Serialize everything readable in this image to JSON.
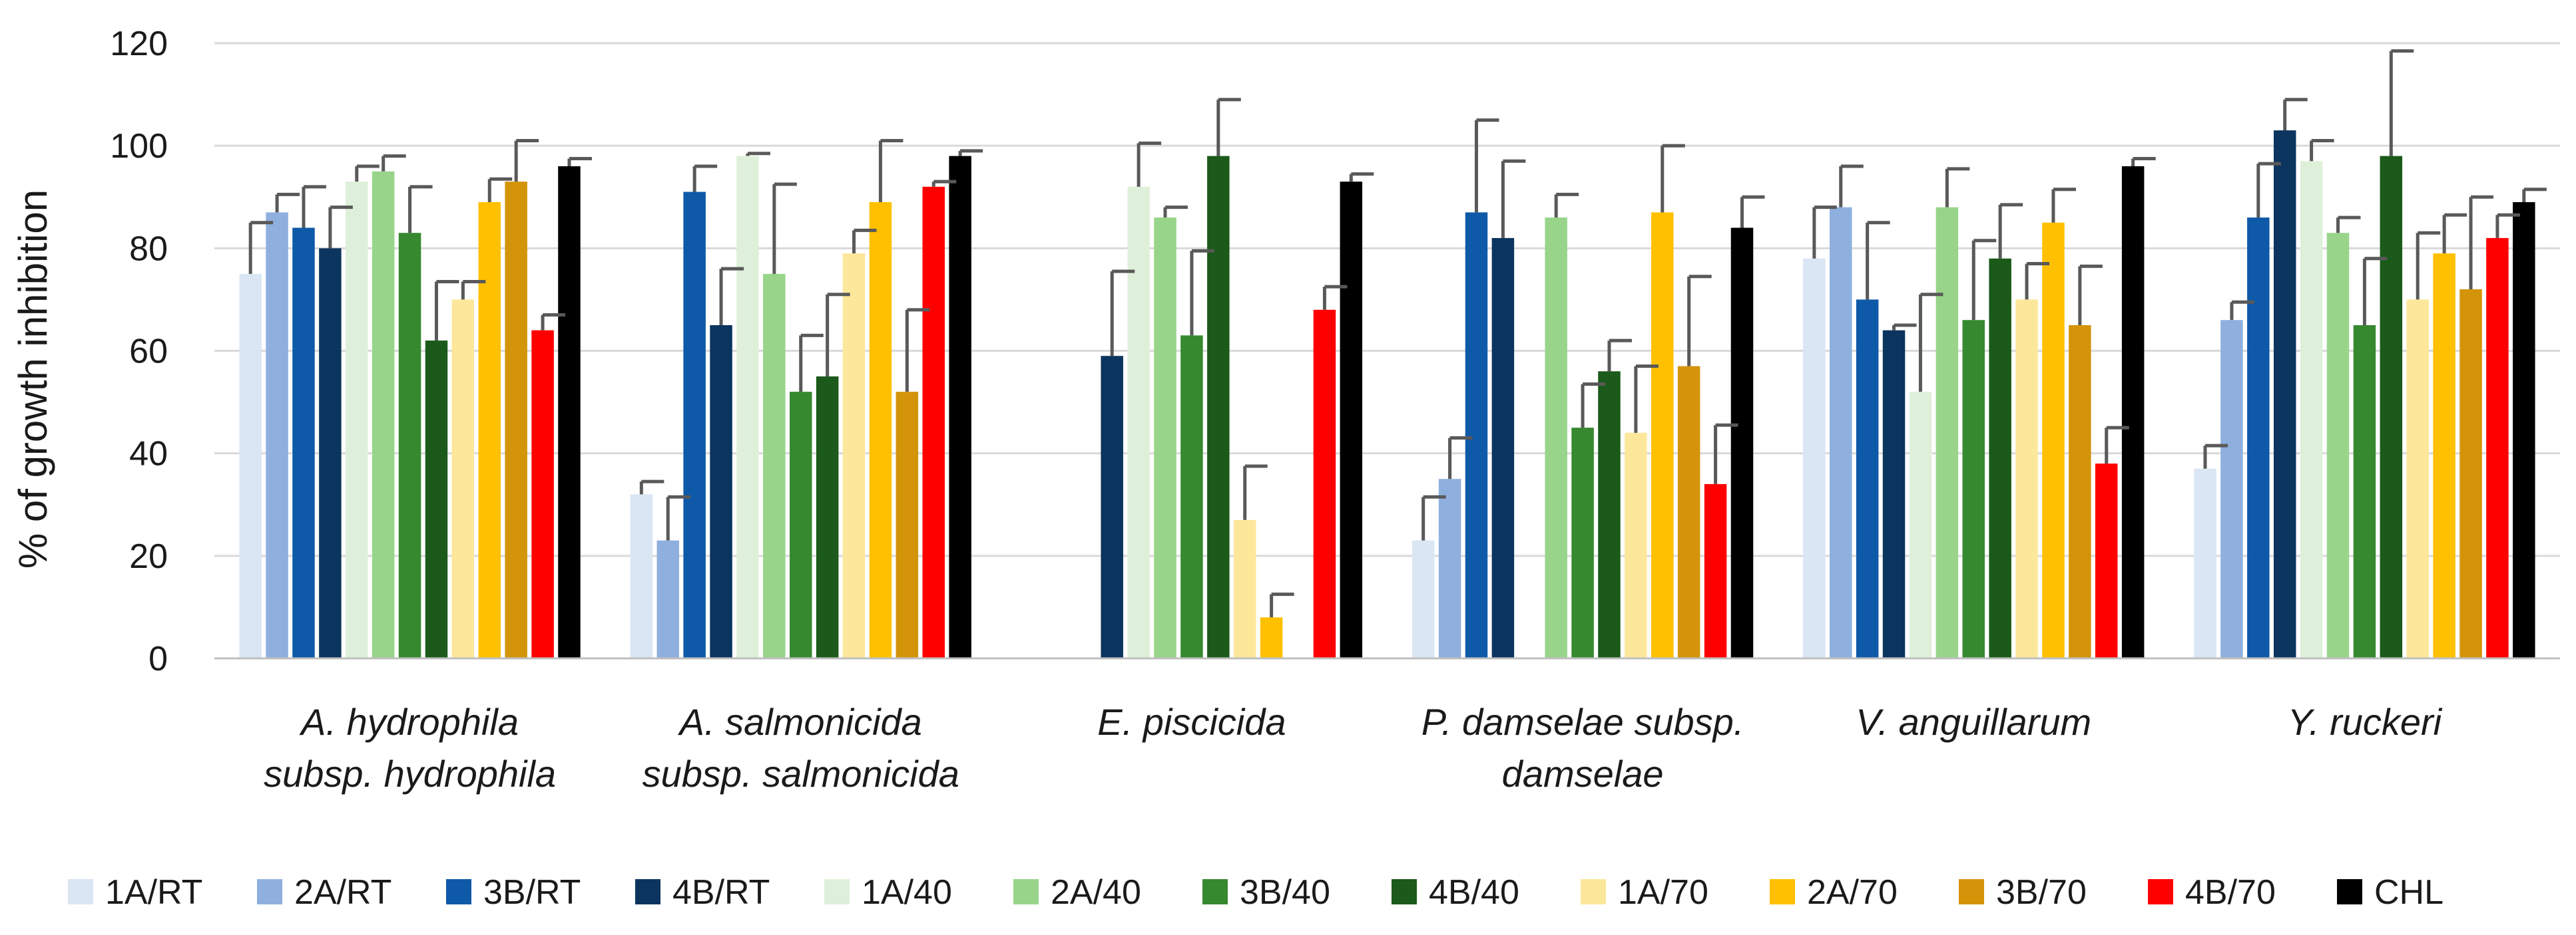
{
  "chart_data": {
    "type": "bar",
    "title": "",
    "xlabel": "",
    "ylabel": "% of growth inhibition",
    "ylim": [
      0,
      120
    ],
    "yticks": [
      0,
      20,
      40,
      60,
      80,
      100,
      120
    ],
    "grid": true,
    "legend_position": "bottom",
    "categories": [
      [
        "A. hydrophila",
        "subsp. hydrophila"
      ],
      [
        "A. salmonicida",
        "subsp. salmonicida"
      ],
      [
        "E. piscicida"
      ],
      [
        "P. damselae subsp.",
        "damselae"
      ],
      [
        "V. anguillarum"
      ],
      [
        "Y. ruckeri"
      ]
    ],
    "series": [
      {
        "name": "1A/RT",
        "color": "#dbe6f4",
        "values": [
          75,
          32,
          null,
          23,
          78,
          37
        ],
        "errors": [
          10,
          2.5,
          null,
          8.5,
          10,
          4.5
        ]
      },
      {
        "name": "2A/RT",
        "color": "#8fb0de",
        "values": [
          87,
          23,
          null,
          35,
          88,
          66
        ],
        "errors": [
          3.5,
          8.5,
          null,
          8,
          8,
          3.5
        ]
      },
      {
        "name": "3B/RT",
        "color": "#0e5aa8",
        "values": [
          84,
          91,
          null,
          87,
          70,
          86
        ],
        "errors": [
          8,
          5,
          null,
          18,
          15,
          10.5
        ]
      },
      {
        "name": "4B/RT",
        "color": "#0b355e",
        "values": [
          80,
          65,
          59,
          82,
          64,
          103
        ],
        "errors": [
          8,
          11,
          16.5,
          15,
          1,
          6
        ]
      },
      {
        "name": "1A/40",
        "color": "#dff0da",
        "values": [
          93,
          98,
          92,
          null,
          52,
          97
        ],
        "errors": [
          3,
          0.5,
          8.5,
          null,
          19,
          4
        ]
      },
      {
        "name": "2A/40",
        "color": "#98d58a",
        "values": [
          95,
          75,
          86,
          86,
          88,
          83
        ],
        "errors": [
          3,
          17.5,
          2,
          4.5,
          7.5,
          3
        ]
      },
      {
        "name": "3B/40",
        "color": "#36892f",
        "values": [
          83,
          52,
          63,
          45,
          66,
          65
        ],
        "errors": [
          9,
          11,
          16.5,
          8.5,
          15.5,
          13
        ]
      },
      {
        "name": "4B/40",
        "color": "#1b5a1a",
        "values": [
          62,
          55,
          98,
          56,
          78,
          98
        ],
        "errors": [
          11.5,
          16,
          11,
          6,
          10.5,
          20.5
        ]
      },
      {
        "name": "1A/70",
        "color": "#fde79b",
        "values": [
          70,
          79,
          27,
          44,
          70,
          70
        ],
        "errors": [
          3.5,
          4.5,
          10.5,
          13,
          7,
          13
        ]
      },
      {
        "name": "2A/70",
        "color": "#ffc000",
        "values": [
          89,
          89,
          8,
          87,
          85,
          79
        ],
        "errors": [
          4.5,
          12,
          4.5,
          13,
          6.5,
          7.5
        ]
      },
      {
        "name": "3B/70",
        "color": "#d4940a",
        "values": [
          93,
          52,
          null,
          57,
          65,
          72
        ],
        "errors": [
          8,
          16,
          null,
          17.5,
          11.5,
          18
        ]
      },
      {
        "name": "4B/70",
        "color": "#ff0000",
        "values": [
          64,
          92,
          68,
          34,
          38,
          82
        ],
        "errors": [
          3,
          1,
          4.5,
          11.5,
          7,
          4.5
        ]
      },
      {
        "name": "CHL",
        "color": "#000000",
        "values": [
          96,
          98,
          93,
          84,
          96,
          89
        ],
        "errors": [
          1.5,
          1,
          1.5,
          6,
          1.5,
          2.5
        ]
      }
    ]
  }
}
